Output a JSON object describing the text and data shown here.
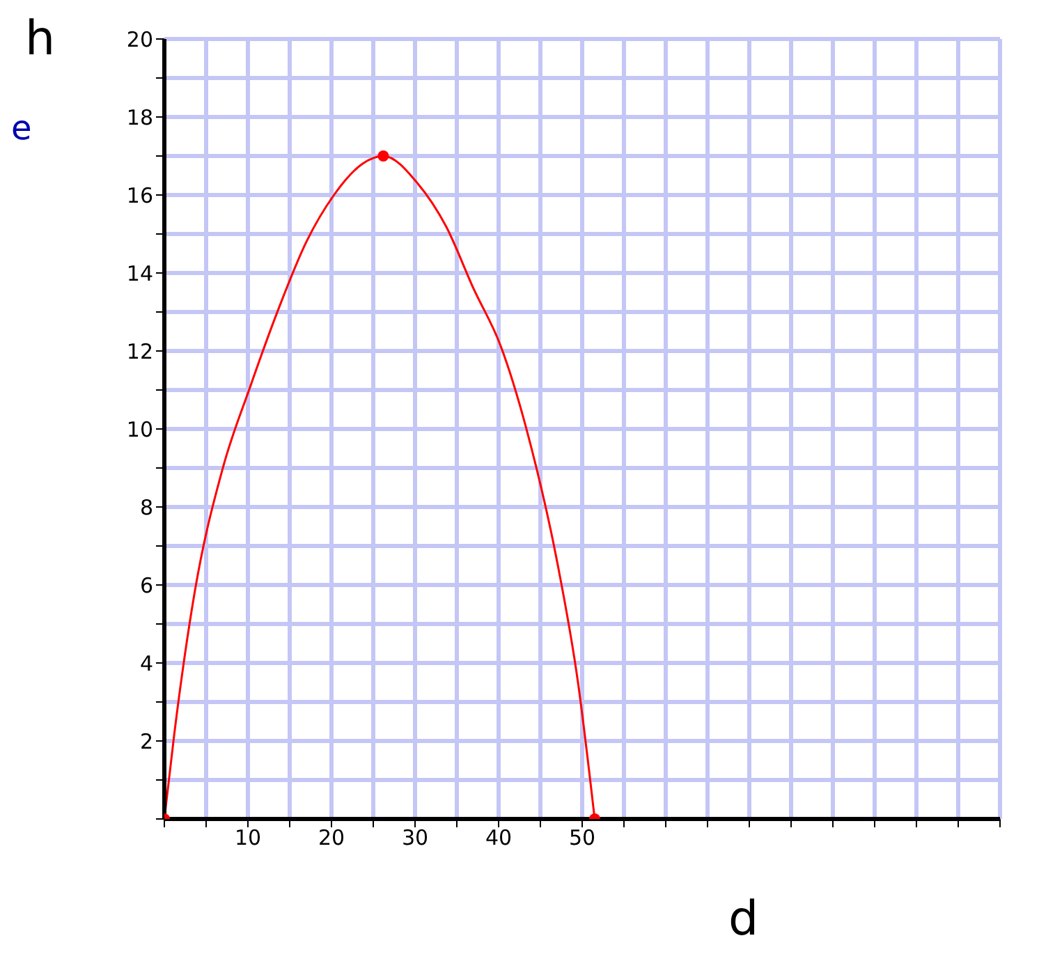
{
  "chart_data": {
    "type": "line",
    "xlabel": "d",
    "ylabel": "h",
    "annotations": [
      "e"
    ],
    "xlim": [
      0,
      100
    ],
    "ylim": [
      0,
      20
    ],
    "xticks": [
      {
        "value": 0,
        "label": null
      },
      {
        "value": 5,
        "label": null
      },
      10,
      {
        "value": 15,
        "label": null
      },
      20,
      {
        "value": 25,
        "label": null
      },
      30,
      {
        "value": 35,
        "label": null
      },
      40,
      {
        "value": 45,
        "label": null
      },
      50,
      {
        "value": 55,
        "label": null
      },
      {
        "value": 60,
        "label": null
      },
      {
        "value": 65,
        "label": null
      },
      {
        "value": 70,
        "label": null
      },
      {
        "value": 75,
        "label": null
      },
      {
        "value": 80,
        "label": null
      },
      {
        "value": 85,
        "label": null
      },
      {
        "value": 90,
        "label": null
      },
      {
        "value": 95,
        "label": null
      },
      {
        "value": 100,
        "label": null
      }
    ],
    "yticks": [
      {
        "value": 0,
        "label": null
      },
      {
        "value": 1,
        "label": null
      },
      2,
      {
        "value": 3,
        "label": null
      },
      4,
      {
        "value": 5,
        "label": null
      },
      6,
      {
        "value": 7,
        "label": null
      },
      8,
      {
        "value": 9,
        "label": null
      },
      10,
      {
        "value": 11,
        "label": null
      },
      12,
      {
        "value": 13,
        "label": null
      },
      14,
      {
        "value": 15,
        "label": null
      },
      16,
      {
        "value": 17,
        "label": null
      },
      18,
      {
        "value": 19,
        "label": null
      },
      20
    ],
    "grid": true,
    "series": [
      {
        "type": "line",
        "color": "#ff0000",
        "marker": "none",
        "x": [
          0,
          1.2,
          3.7,
          7,
          10.3,
          13.7,
          17,
          20.3,
          23.7,
          26.2,
          30.3,
          33.7,
          37,
          40.3,
          43.7,
          47,
          49.5,
          51.5
        ],
        "values": [
          0,
          2.2,
          5.9,
          9,
          11.1,
          13.1,
          14.8,
          16,
          16.8,
          17,
          16.3,
          15.2,
          13.6,
          12.1,
          9.7,
          6.6,
          3.5,
          0
        ]
      },
      {
        "type": "scatter",
        "color": "#ff0000",
        "marker": "circle",
        "x": [
          0,
          26.2,
          51.5
        ],
        "values": [
          0,
          17,
          0
        ]
      }
    ]
  }
}
